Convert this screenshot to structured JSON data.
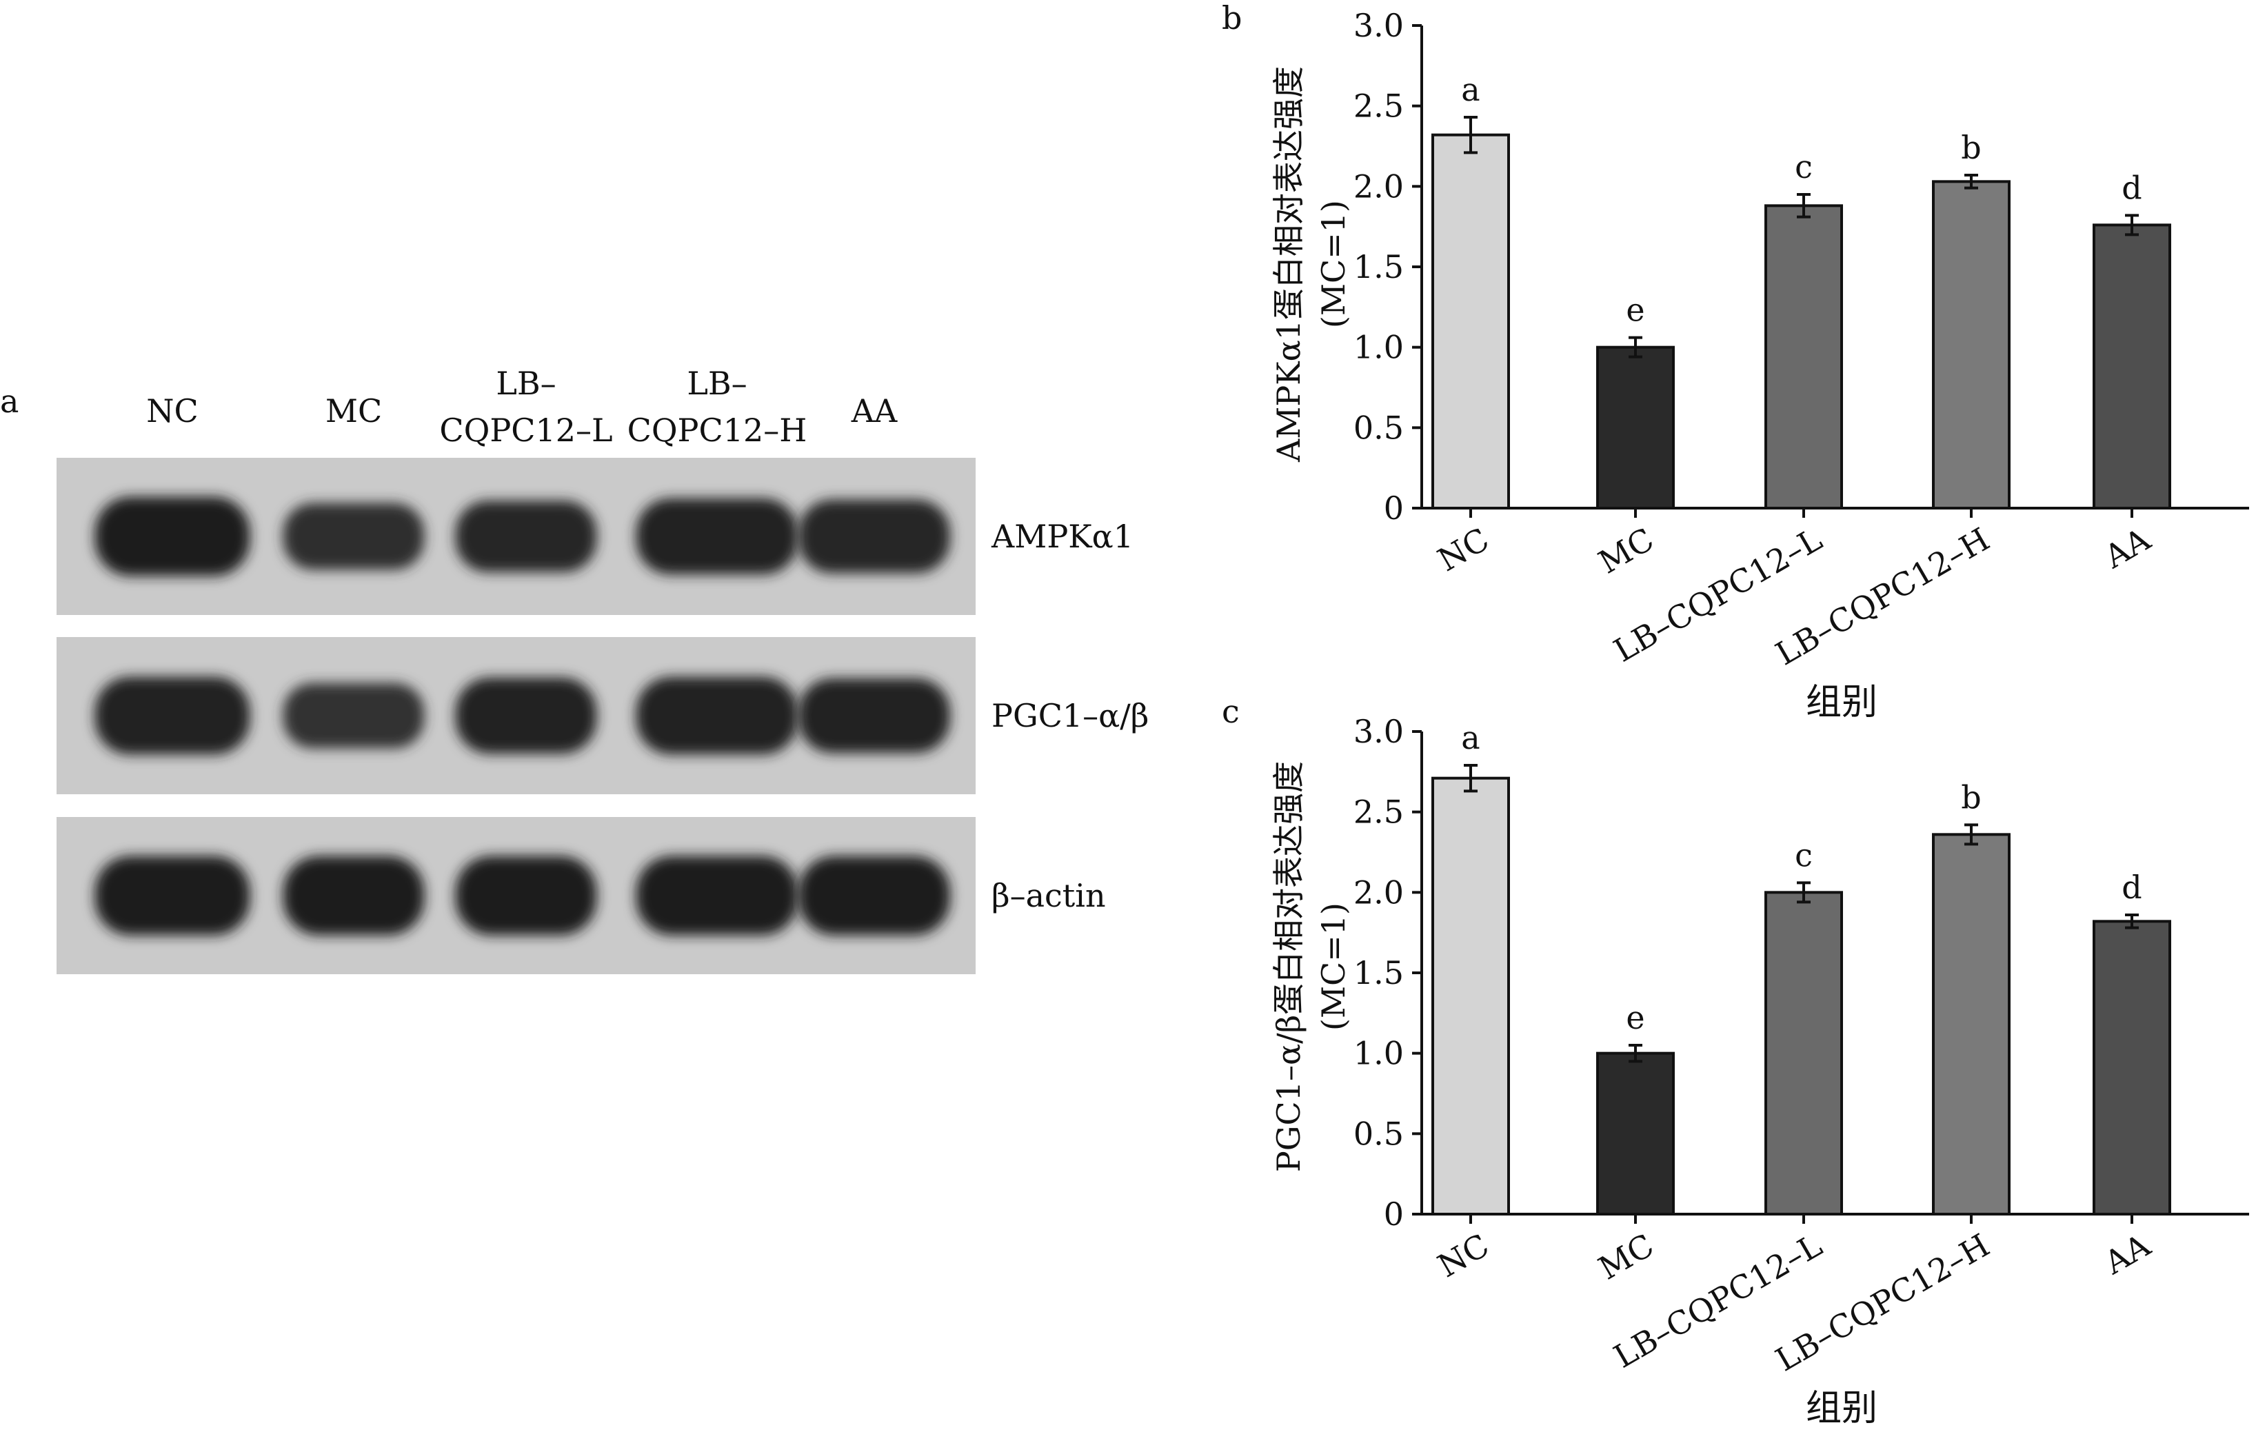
{
  "panel_a": {
    "panel_label": "a",
    "lanes": [
      {
        "line1": "NC",
        "line2": ""
      },
      {
        "line1": "MC",
        "line2": ""
      },
      {
        "line1": "LB–",
        "line2": "CQPC12–L"
      },
      {
        "line1": "LB–",
        "line2": "CQPC12–H"
      },
      {
        "line1": "AA",
        "line2": ""
      }
    ],
    "blots": [
      {
        "label": "AMPKα1",
        "band_intensity": [
          1.0,
          0.6,
          0.75,
          0.9,
          0.82
        ]
      },
      {
        "label": "PGC1–α/β",
        "band_intensity": [
          0.95,
          0.55,
          0.9,
          0.95,
          0.85
        ]
      },
      {
        "label": "β–actin",
        "band_intensity": [
          1.0,
          1.0,
          1.0,
          1.0,
          1.0
        ]
      }
    ]
  },
  "chart_data": [
    {
      "panel_label": "b",
      "type": "bar",
      "categories": [
        "NC",
        "MC",
        "LB–CQPC12–L",
        "LB–CQPC12–H",
        "AA"
      ],
      "values": [
        2.32,
        1.0,
        1.88,
        2.03,
        1.76
      ],
      "errors": [
        0.11,
        0.06,
        0.07,
        0.04,
        0.06
      ],
      "significance": [
        "a",
        "e",
        "c",
        "b",
        "d"
      ],
      "bar_colors": [
        "#d4d4d4",
        "#2a2a2a",
        "#6a6a6a",
        "#7a7a7a",
        "#4f4f4f"
      ],
      "ylabel_line1": "AMPKα1蛋白相对表达强度",
      "ylabel_line2": "(MC=1)",
      "xlabel": "组别",
      "ylim": [
        0,
        3.0
      ],
      "yticks": [
        "0",
        "0.5",
        "1.0",
        "1.5",
        "2.0",
        "2.5",
        "3.0"
      ]
    },
    {
      "panel_label": "c",
      "type": "bar",
      "categories": [
        "NC",
        "MC",
        "LB–CQPC12–L",
        "LB–CQPC12–H",
        "AA"
      ],
      "values": [
        2.71,
        1.0,
        2.0,
        2.36,
        1.82
      ],
      "errors": [
        0.08,
        0.05,
        0.06,
        0.06,
        0.04
      ],
      "significance": [
        "a",
        "e",
        "c",
        "b",
        "d"
      ],
      "bar_colors": [
        "#d4d4d4",
        "#2a2a2a",
        "#6a6a6a",
        "#7a7a7a",
        "#4f4f4f"
      ],
      "ylabel_line1": "PGC1–α/β蛋白相对表达强度",
      "ylabel_line2": "(MC=1)",
      "xlabel": "组别",
      "ylim": [
        0,
        3.0
      ],
      "yticks": [
        "0",
        "0.5",
        "1.0",
        "1.5",
        "2.0",
        "2.5",
        "3.0"
      ]
    }
  ]
}
